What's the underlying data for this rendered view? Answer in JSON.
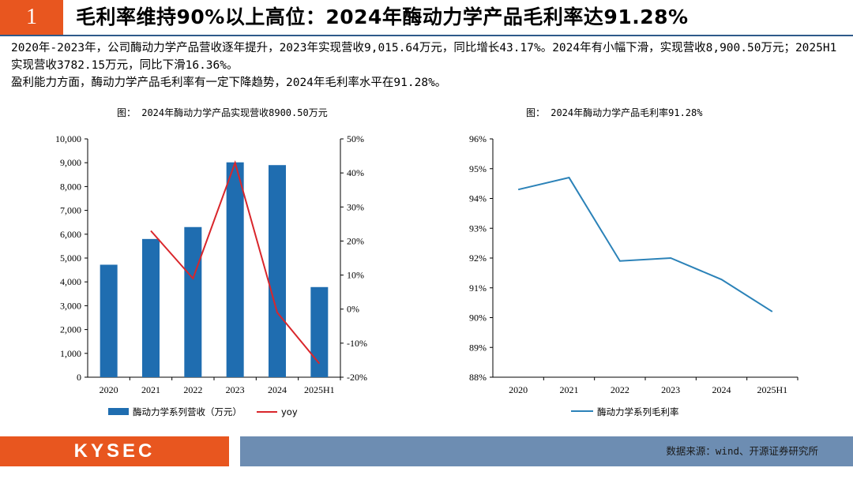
{
  "header": {
    "number": "1",
    "title": "毛利率维持90%以上高位：2024年酶动力学产品毛利率达91.28%"
  },
  "paragraphs": [
    "2020年-2023年，公司酶动力学产品营收逐年提升，2023年实现营收9,015.64万元，同比增长43.17%。2024年有小幅下滑，实现营收8,900.50万元；2025H1实现营收3782.15万元，同比下滑16.36%。",
    "盈利能力方面，酶动力学产品毛利率有一定下降趋势，2024年毛利率水平在91.28%。"
  ],
  "colors": {
    "accent": "#e8561f",
    "bar": "#1f6db0",
    "line": "#d9262b",
    "margin_line": "#2b82b8",
    "footer_band": "#6d8db2"
  },
  "chart_data": [
    {
      "type": "bar",
      "title": "图：  2024年酶动力学产品实现营收8900.50万元",
      "categories": [
        "2020",
        "2021",
        "2022",
        "2023",
        "2024",
        "2025H1"
      ],
      "series": [
        {
          "name": "酶动力学系列营收（万元）",
          "kind": "bar",
          "axis": "left",
          "values": [
            4720,
            5800,
            6300,
            9016,
            8900,
            3782
          ]
        },
        {
          "name": "yoy",
          "kind": "line",
          "axis": "right",
          "values": [
            null,
            23,
            9,
            43,
            -1,
            -16
          ]
        }
      ],
      "y_left": {
        "min": 0,
        "max": 10000,
        "step": 1000,
        "tick_labels": [
          "0",
          "1,000",
          "2,000",
          "3,000",
          "4,000",
          "5,000",
          "6,000",
          "7,000",
          "8,000",
          "9,000",
          "10,000"
        ]
      },
      "y_right": {
        "min": -20,
        "max": 50,
        "step": 10,
        "tick_labels": [
          "-20%",
          "-10%",
          "0%",
          "10%",
          "20%",
          "30%",
          "40%",
          "50%"
        ]
      }
    },
    {
      "type": "line",
      "title": "图：  2024年酶动力学产品毛利率91.28%",
      "categories": [
        "2020",
        "2021",
        "2022",
        "2023",
        "2024",
        "2025H1"
      ],
      "series": [
        {
          "name": "酶动力学系列毛利率",
          "values": [
            94.3,
            94.7,
            91.9,
            92.0,
            91.28,
            90.2
          ]
        }
      ],
      "y": {
        "min": 88,
        "max": 96,
        "step": 1,
        "tick_labels": [
          "88%",
          "89%",
          "90%",
          "91%",
          "92%",
          "93%",
          "94%",
          "95%",
          "96%"
        ]
      }
    }
  ],
  "footer": {
    "logo": "KYSEC",
    "source": "数据来源：wind、开源证券研究所"
  }
}
